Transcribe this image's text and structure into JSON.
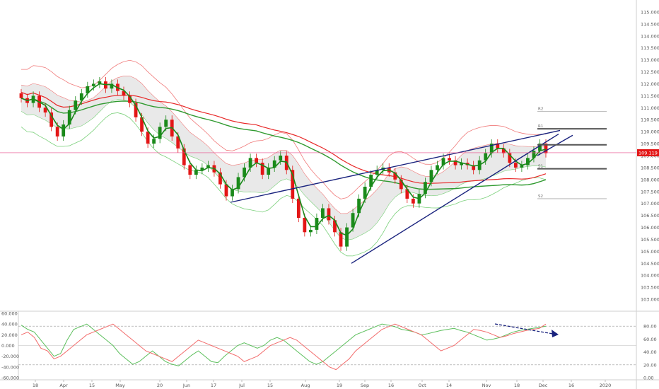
{
  "colors": {
    "up": "#1a8a1a",
    "down": "#e31616",
    "ma_fast": "#e82828",
    "ma_slow": "#2f9a2f",
    "band_upper": "#f07a7a",
    "band_lower": "#7ad07a",
    "trendline": "#1a237e",
    "price_line": "#e84a8a",
    "price_tag_bg": "#e31616",
    "level_thick": "#555555",
    "level_thin": "#aaaaaa",
    "cloud_fill": "#e9e9e9",
    "osc_red": "#f26b6b",
    "osc_green": "#5cbf5c"
  },
  "chart_data": [
    {
      "type": "candlestick",
      "title": "",
      "xlabel": "",
      "ylabel": "",
      "ylim": [
        102.5,
        115.5
      ],
      "y_ticks": [
        "103.000",
        "103.500",
        "104.000",
        "104.500",
        "105.000",
        "105.500",
        "106.000",
        "106.500",
        "107.000",
        "107.500",
        "108.000",
        "108.500",
        "109.000",
        "109.500",
        "110.000",
        "110.500",
        "111.000",
        "111.500",
        "112.000",
        "112.500",
        "113.000",
        "113.500",
        "114.000",
        "114.500",
        "115.000"
      ],
      "x_ticks": [
        "18",
        "Apr",
        "15",
        "May",
        "20",
        "Jun",
        "17",
        "Jul",
        "15",
        "Aug",
        "19",
        "Sep",
        "16",
        "Oct",
        "14",
        "Nov",
        "18",
        "Dec",
        "16",
        "2020"
      ],
      "current_price_label": "109.119",
      "pivot_levels": [
        {
          "name": "R2",
          "value": 110.85
        },
        {
          "name": "R1",
          "value": 110.12
        },
        {
          "name": "P",
          "value": 109.45
        },
        {
          "name": "S1",
          "value": 108.45
        },
        {
          "name": "S2",
          "value": 107.2
        }
      ],
      "candles_close_approx": [
        111.4,
        111.2,
        111.5,
        111.0,
        110.8,
        110.2,
        109.8,
        110.3,
        110.9,
        111.3,
        111.6,
        111.9,
        112.0,
        112.1,
        111.8,
        112.0,
        111.7,
        111.5,
        111.2,
        110.6,
        110.0,
        109.5,
        109.7,
        110.2,
        110.5,
        109.8,
        109.3,
        108.6,
        108.2,
        108.4,
        108.5,
        108.6,
        108.3,
        107.8,
        107.3,
        107.6,
        108.1,
        108.5,
        108.9,
        108.7,
        108.2,
        108.5,
        108.8,
        109.0,
        108.4,
        107.2,
        106.4,
        105.8,
        105.9,
        106.4,
        106.8,
        106.3,
        105.8,
        105.2,
        106.0,
        106.6,
        107.2,
        107.7,
        108.2,
        108.4,
        108.5,
        108.3,
        108.0,
        107.6,
        107.2,
        107.0,
        107.4,
        107.9,
        108.4,
        108.6,
        108.9,
        108.8,
        108.6,
        108.7,
        108.6,
        108.4,
        108.8,
        109.1,
        109.5,
        109.3,
        109.1,
        108.7,
        108.5,
        108.6,
        108.9,
        109.2,
        109.5,
        109.1
      ]
    },
    {
      "type": "line",
      "title": "",
      "y_ticks_left": [
        "60.000",
        "40.000",
        "20.000",
        "0.000",
        "-20.000",
        "-40.000",
        "-60.000"
      ],
      "y_ticks_right": [
        "80.00",
        "60.00",
        "40.00",
        "20.00",
        "0.00"
      ],
      "ylim": [
        -60,
        60
      ],
      "series": [
        {
          "values": [
            38,
            30,
            25,
            10,
            -5,
            -20,
            -15,
            10,
            30,
            35,
            40,
            30,
            20,
            10,
            0,
            -15,
            -25,
            -35,
            -30,
            -20,
            -10,
            -20,
            -30,
            -35,
            -38,
            -28,
            -18,
            -10,
            -20,
            -30,
            -32,
            -20,
            -10,
            0,
            5,
            0,
            -5,
            0,
            10,
            15,
            10,
            0,
            -10,
            -20,
            -30,
            -35,
            -30,
            -20,
            -10,
            0,
            10,
            20,
            25,
            30,
            35,
            40,
            38,
            35,
            30,
            28,
            25,
            20,
            22,
            25,
            28,
            30,
            32,
            28,
            25,
            20,
            15,
            10,
            12,
            15,
            20,
            25,
            28,
            30,
            32,
            34,
            36
          ]
        },
        {
          "values": [
            20,
            25,
            15,
            -5,
            -10,
            -25,
            -20,
            -10,
            0,
            10,
            20,
            25,
            30,
            35,
            40,
            30,
            20,
            10,
            0,
            -10,
            -15,
            -20,
            -25,
            -30,
            -20,
            -10,
            0,
            10,
            5,
            0,
            -5,
            -10,
            -15,
            -20,
            -30,
            -25,
            -20,
            -10,
            0,
            5,
            10,
            15,
            10,
            0,
            -10,
            -20,
            -30,
            -40,
            -45,
            -35,
            -25,
            -10,
            0,
            10,
            20,
            30,
            35,
            40,
            35,
            30,
            25,
            20,
            10,
            0,
            -10,
            -5,
            0,
            10,
            20,
            30,
            28,
            25,
            20,
            15,
            18,
            22,
            25,
            28,
            30,
            32,
            40
          ]
        }
      ]
    }
  ]
}
